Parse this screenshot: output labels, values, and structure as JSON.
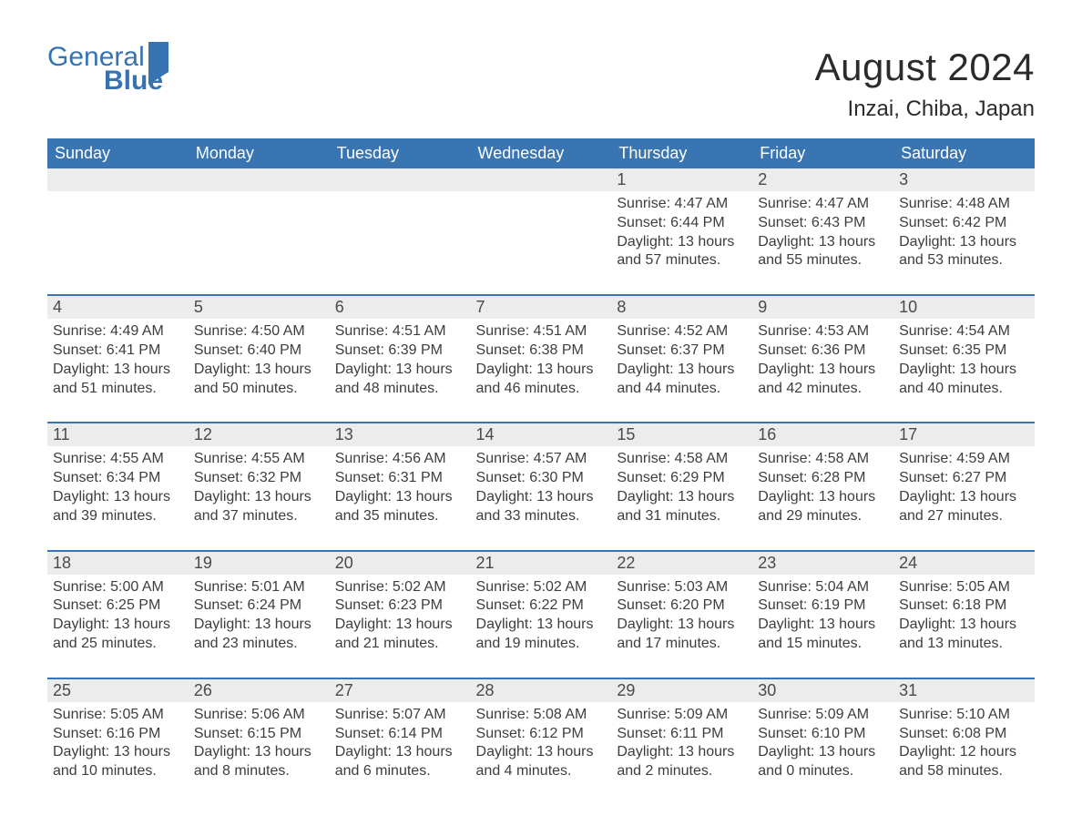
{
  "logo": {
    "line1": "General",
    "line2": "Blue",
    "brand_color": "#3773b0"
  },
  "title": "August 2024",
  "location": "Inzai, Chiba, Japan",
  "calendar": {
    "weekdays": [
      "Sunday",
      "Monday",
      "Tuesday",
      "Wednesday",
      "Thursday",
      "Friday",
      "Saturday"
    ],
    "header_bg": "#3975b2",
    "header_text_color": "#ffffff",
    "daynum_bg": "#ececec",
    "border_color": "#3975b2",
    "text_color": "#3d3d3d",
    "background_color": "#ffffff",
    "font_family": "Arial",
    "weeks": [
      {
        "nums": [
          "",
          "",
          "",
          "",
          "1",
          "2",
          "3"
        ],
        "cells": [
          null,
          null,
          null,
          null,
          {
            "sunrise": "Sunrise: 4:47 AM",
            "sunset": "Sunset: 6:44 PM",
            "day1": "Daylight: 13 hours",
            "day2": "and 57 minutes."
          },
          {
            "sunrise": "Sunrise: 4:47 AM",
            "sunset": "Sunset: 6:43 PM",
            "day1": "Daylight: 13 hours",
            "day2": "and 55 minutes."
          },
          {
            "sunrise": "Sunrise: 4:48 AM",
            "sunset": "Sunset: 6:42 PM",
            "day1": "Daylight: 13 hours",
            "day2": "and 53 minutes."
          }
        ]
      },
      {
        "nums": [
          "4",
          "5",
          "6",
          "7",
          "8",
          "9",
          "10"
        ],
        "cells": [
          {
            "sunrise": "Sunrise: 4:49 AM",
            "sunset": "Sunset: 6:41 PM",
            "day1": "Daylight: 13 hours",
            "day2": "and 51 minutes."
          },
          {
            "sunrise": "Sunrise: 4:50 AM",
            "sunset": "Sunset: 6:40 PM",
            "day1": "Daylight: 13 hours",
            "day2": "and 50 minutes."
          },
          {
            "sunrise": "Sunrise: 4:51 AM",
            "sunset": "Sunset: 6:39 PM",
            "day1": "Daylight: 13 hours",
            "day2": "and 48 minutes."
          },
          {
            "sunrise": "Sunrise: 4:51 AM",
            "sunset": "Sunset: 6:38 PM",
            "day1": "Daylight: 13 hours",
            "day2": "and 46 minutes."
          },
          {
            "sunrise": "Sunrise: 4:52 AM",
            "sunset": "Sunset: 6:37 PM",
            "day1": "Daylight: 13 hours",
            "day2": "and 44 minutes."
          },
          {
            "sunrise": "Sunrise: 4:53 AM",
            "sunset": "Sunset: 6:36 PM",
            "day1": "Daylight: 13 hours",
            "day2": "and 42 minutes."
          },
          {
            "sunrise": "Sunrise: 4:54 AM",
            "sunset": "Sunset: 6:35 PM",
            "day1": "Daylight: 13 hours",
            "day2": "and 40 minutes."
          }
        ]
      },
      {
        "nums": [
          "11",
          "12",
          "13",
          "14",
          "15",
          "16",
          "17"
        ],
        "cells": [
          {
            "sunrise": "Sunrise: 4:55 AM",
            "sunset": "Sunset: 6:34 PM",
            "day1": "Daylight: 13 hours",
            "day2": "and 39 minutes."
          },
          {
            "sunrise": "Sunrise: 4:55 AM",
            "sunset": "Sunset: 6:32 PM",
            "day1": "Daylight: 13 hours",
            "day2": "and 37 minutes."
          },
          {
            "sunrise": "Sunrise: 4:56 AM",
            "sunset": "Sunset: 6:31 PM",
            "day1": "Daylight: 13 hours",
            "day2": "and 35 minutes."
          },
          {
            "sunrise": "Sunrise: 4:57 AM",
            "sunset": "Sunset: 6:30 PM",
            "day1": "Daylight: 13 hours",
            "day2": "and 33 minutes."
          },
          {
            "sunrise": "Sunrise: 4:58 AM",
            "sunset": "Sunset: 6:29 PM",
            "day1": "Daylight: 13 hours",
            "day2": "and 31 minutes."
          },
          {
            "sunrise": "Sunrise: 4:58 AM",
            "sunset": "Sunset: 6:28 PM",
            "day1": "Daylight: 13 hours",
            "day2": "and 29 minutes."
          },
          {
            "sunrise": "Sunrise: 4:59 AM",
            "sunset": "Sunset: 6:27 PM",
            "day1": "Daylight: 13 hours",
            "day2": "and 27 minutes."
          }
        ]
      },
      {
        "nums": [
          "18",
          "19",
          "20",
          "21",
          "22",
          "23",
          "24"
        ],
        "cells": [
          {
            "sunrise": "Sunrise: 5:00 AM",
            "sunset": "Sunset: 6:25 PM",
            "day1": "Daylight: 13 hours",
            "day2": "and 25 minutes."
          },
          {
            "sunrise": "Sunrise: 5:01 AM",
            "sunset": "Sunset: 6:24 PM",
            "day1": "Daylight: 13 hours",
            "day2": "and 23 minutes."
          },
          {
            "sunrise": "Sunrise: 5:02 AM",
            "sunset": "Sunset: 6:23 PM",
            "day1": "Daylight: 13 hours",
            "day2": "and 21 minutes."
          },
          {
            "sunrise": "Sunrise: 5:02 AM",
            "sunset": "Sunset: 6:22 PM",
            "day1": "Daylight: 13 hours",
            "day2": "and 19 minutes."
          },
          {
            "sunrise": "Sunrise: 5:03 AM",
            "sunset": "Sunset: 6:20 PM",
            "day1": "Daylight: 13 hours",
            "day2": "and 17 minutes."
          },
          {
            "sunrise": "Sunrise: 5:04 AM",
            "sunset": "Sunset: 6:19 PM",
            "day1": "Daylight: 13 hours",
            "day2": "and 15 minutes."
          },
          {
            "sunrise": "Sunrise: 5:05 AM",
            "sunset": "Sunset: 6:18 PM",
            "day1": "Daylight: 13 hours",
            "day2": "and 13 minutes."
          }
        ]
      },
      {
        "nums": [
          "25",
          "26",
          "27",
          "28",
          "29",
          "30",
          "31"
        ],
        "cells": [
          {
            "sunrise": "Sunrise: 5:05 AM",
            "sunset": "Sunset: 6:16 PM",
            "day1": "Daylight: 13 hours",
            "day2": "and 10 minutes."
          },
          {
            "sunrise": "Sunrise: 5:06 AM",
            "sunset": "Sunset: 6:15 PM",
            "day1": "Daylight: 13 hours",
            "day2": "and 8 minutes."
          },
          {
            "sunrise": "Sunrise: 5:07 AM",
            "sunset": "Sunset: 6:14 PM",
            "day1": "Daylight: 13 hours",
            "day2": "and 6 minutes."
          },
          {
            "sunrise": "Sunrise: 5:08 AM",
            "sunset": "Sunset: 6:12 PM",
            "day1": "Daylight: 13 hours",
            "day2": "and 4 minutes."
          },
          {
            "sunrise": "Sunrise: 5:09 AM",
            "sunset": "Sunset: 6:11 PM",
            "day1": "Daylight: 13 hours",
            "day2": "and 2 minutes."
          },
          {
            "sunrise": "Sunrise: 5:09 AM",
            "sunset": "Sunset: 6:10 PM",
            "day1": "Daylight: 13 hours",
            "day2": "and 0 minutes."
          },
          {
            "sunrise": "Sunrise: 5:10 AM",
            "sunset": "Sunset: 6:08 PM",
            "day1": "Daylight: 12 hours",
            "day2": "and 58 minutes."
          }
        ]
      }
    ]
  }
}
